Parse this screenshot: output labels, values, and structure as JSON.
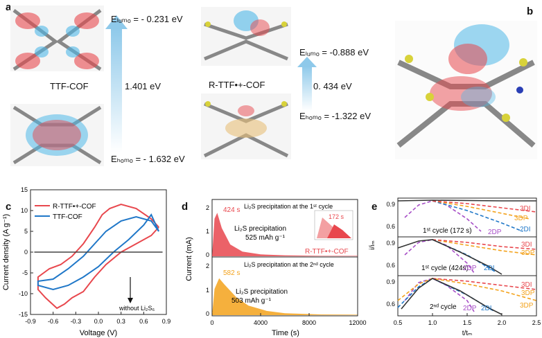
{
  "panel_a": {
    "label": "a",
    "left": {
      "name": "TTF-COF",
      "lumo": "Eₗᵤₘₒ = - 0.231 eV",
      "homo": "Eₕₒₘₒ = - 1.632 eV",
      "gap": "1.401 eV"
    },
    "right": {
      "name": "R-TTF•+-COF",
      "lumo": "Eₗᵤₘₒ = -0.888 eV",
      "homo": "Eₕₒₘₒ = -1.322 eV",
      "gap": "0. 434 eV"
    }
  },
  "panel_b": {
    "label": "b"
  },
  "panel_c": {
    "label": "c",
    "annotation": "without Li₂S₆",
    "chart_data": {
      "type": "line",
      "xlabel": "Voltage (V)",
      "ylabel": "Current density (A g⁻¹)",
      "xlim": [
        -0.9,
        0.9
      ],
      "ylim": [
        -15,
        15
      ],
      "xticks": [
        "-0.9",
        "-0.6",
        "-0.3",
        "0.0",
        "0.3",
        "0.6",
        "0.9"
      ],
      "yticks": [
        "15",
        "10",
        "5",
        "0",
        "-5",
        "-10",
        "-15"
      ],
      "legend_position": "top-left",
      "series": [
        {
          "name": "R-TTF•+-COF",
          "color": "#e8474d",
          "x": [
            0.8,
            0.7,
            0.5,
            0.3,
            0.15,
            0.05,
            -0.05,
            -0.2,
            -0.35,
            -0.5,
            -0.65,
            -0.8,
            -0.8,
            -0.7,
            -0.55,
            -0.45,
            -0.35,
            -0.2,
            -0.05,
            0.1,
            0.3,
            0.5,
            0.7,
            0.8
          ],
          "y": [
            6,
            8,
            10.5,
            11.5,
            10.5,
            9,
            6,
            2,
            -1,
            -3,
            -4,
            -6,
            -9,
            -11,
            -13.5,
            -12.5,
            -11,
            -9.5,
            -6,
            -3,
            0,
            2,
            4,
            6
          ]
        },
        {
          "name": "TTF-COF",
          "color": "#1f77c8",
          "x": [
            0.8,
            0.7,
            0.5,
            0.3,
            0.1,
            0.0,
            -0.2,
            -0.4,
            -0.6,
            -0.8,
            -0.8,
            -0.6,
            -0.4,
            -0.2,
            0.0,
            0.2,
            0.4,
            0.6,
            0.7,
            0.8
          ],
          "y": [
            5,
            7.5,
            8.5,
            7.5,
            5,
            3,
            -1,
            -4,
            -6.5,
            -7,
            -8,
            -9,
            -8,
            -6,
            -3.5,
            0,
            3,
            6.5,
            9,
            5
          ]
        },
        {
          "name": "without Li₂S₆",
          "color": "#444444",
          "x": [
            -0.85,
            0.85
          ],
          "y": [
            0,
            0
          ]
        }
      ]
    }
  },
  "panel_d": {
    "label": "d",
    "cycle1": "Li₂S precipitation at the 1ˢᵗ cycle",
    "cycle2": "Li₂S precipitation at the 2ⁿᵈ cycle",
    "peak1": "424 s",
    "peak2": "582 s",
    "inset_peak": "172 s",
    "cap1_label": "Li₂S precipitation",
    "cap1_value": "525 mAh g⁻¹",
    "cap2_label": "Li₂S precipitation",
    "cap2_value": "503 mAh g⁻¹",
    "series_label": "R-TTF•+-COF",
    "chart_data": {
      "type": "area",
      "xlabel": "Time (s)",
      "ylabel": "Current (mA)",
      "xlim": [
        0,
        12000
      ],
      "xticks": [
        "0",
        "4000",
        "8000",
        "12000"
      ],
      "yticks_top": [
        "2",
        "1",
        "0"
      ],
      "yticks_bottom": [
        "2",
        "1",
        "0"
      ],
      "series": [
        {
          "name": "R-TTF•+-COF",
          "color": "#e8474d",
          "x": [
            0,
            200,
            424,
            800,
            1500,
            2500,
            4000,
            6000,
            9000,
            12000
          ],
          "y": [
            0,
            1.6,
            1.85,
            1.2,
            0.5,
            0.2,
            0.08,
            0.04,
            0.02,
            0.02
          ]
        },
        {
          "name": "TTF-COF",
          "color": "#f3a21b",
          "x": [
            0,
            200,
            582,
            1000,
            2000,
            3000,
            4500,
            6000,
            9000,
            12000
          ],
          "y": [
            0,
            1.1,
            1.55,
            1.3,
            0.75,
            0.4,
            0.18,
            0.08,
            0.03,
            0.02
          ]
        }
      ]
    }
  },
  "panel_e": {
    "label": "e",
    "top_cycle": "1ˢᵗ cycle (172 s)",
    "mid_cycle": "1ˢᵗ cycle (424s)",
    "bottom_cycle": "2ⁿᵈ cycle",
    "models": {
      "3DI": "3DI",
      "3DP": "3DP",
      "2DI": "2DI",
      "2DP": "2DP"
    },
    "chart_data": {
      "type": "line",
      "xlabel": "t/tₘ",
      "ylabel": "i/iₘ",
      "xlim": [
        0.5,
        2.5
      ],
      "xticks": [
        "0.5",
        "1.0",
        "1.5",
        "2.0",
        "2.5"
      ],
      "yticks": [
        "0.9",
        "0.6"
      ],
      "model_colors": {
        "3DI": "#e8474d",
        "3DP": "#f3a21b",
        "2DI": "#1f77c8",
        "2DP": "#a64dc6"
      }
    }
  }
}
